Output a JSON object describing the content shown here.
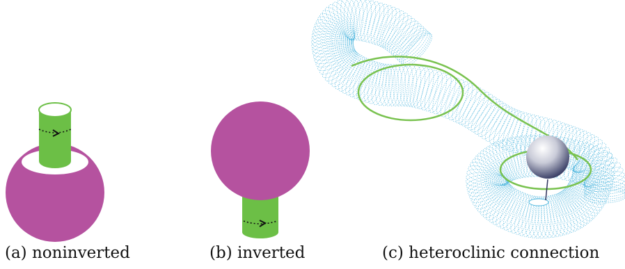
{
  "colors": {
    "magenta": "#b5529f",
    "green": "#6cbf46",
    "torus_mesh": "#4eb6de",
    "orbit": "#79c24f",
    "sphere_light": "#ffffff",
    "sphere_dark": "#2e335c",
    "arrow": "#111111"
  },
  "captions": {
    "a": "(a) noninverted",
    "b": "(b) inverted",
    "c": "(c) heteroclinic connection"
  }
}
